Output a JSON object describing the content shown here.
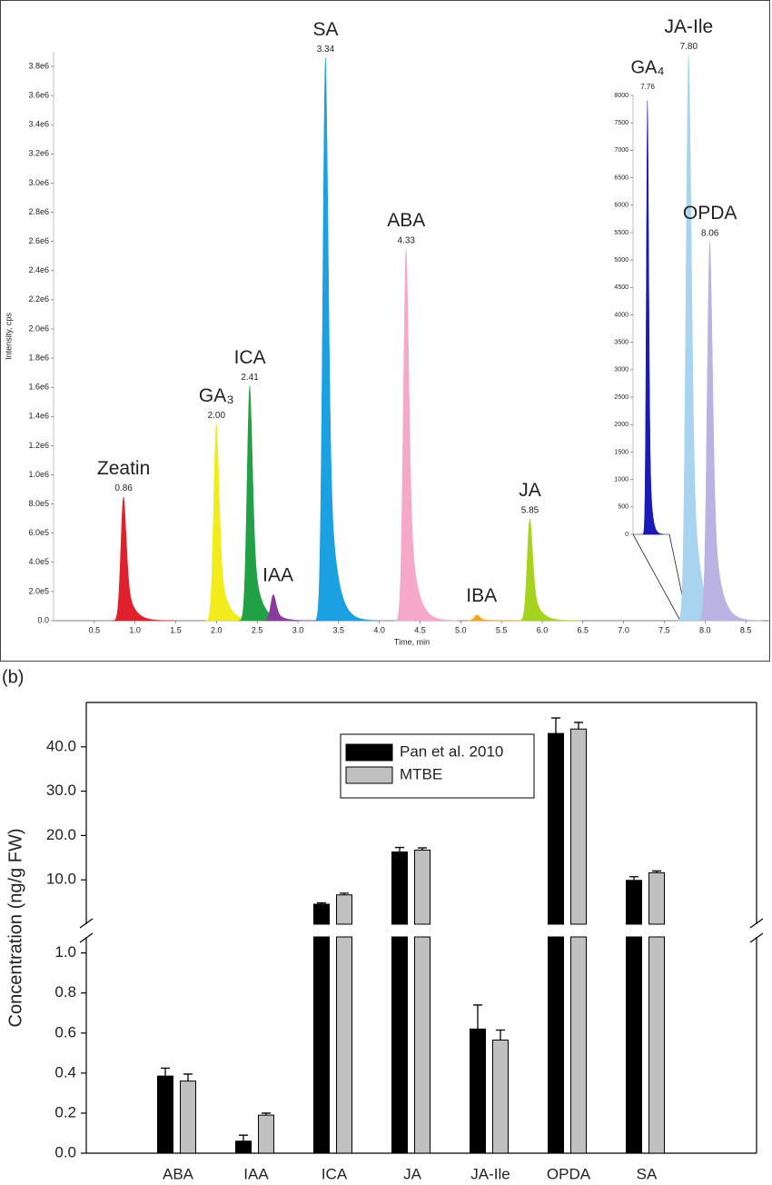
{
  "chart_data": [
    {
      "type": "chromatogram",
      "ylabel": "Intensity, cps",
      "xlabel": "Time, min",
      "xlim": [
        0,
        8.8
      ],
      "ylim": [
        0,
        3900000
      ],
      "xticks": [
        0.5,
        {
          "value": 1,
          "label": "1.0"
        },
        1.5,
        {
          "value": 2,
          "label": "2.0"
        },
        2.5,
        {
          "value": 3,
          "label": "3.0"
        },
        3.5,
        {
          "value": 4,
          "label": "4.0"
        },
        4.5,
        {
          "value": 5,
          "label": "5.0"
        },
        5.5,
        {
          "value": 6,
          "label": "6.0"
        },
        6.5,
        {
          "value": 7,
          "label": "7.0"
        },
        7.5,
        {
          "value": 8,
          "label": "8.0"
        },
        8.5
      ],
      "yticks": [
        {
          "value": 0,
          "label": "0.0"
        },
        {
          "value": 200000,
          "label": "2.0e5"
        },
        {
          "value": 400000,
          "label": "4.0e5"
        },
        {
          "value": 600000,
          "label": "6.0e5"
        },
        {
          "value": 800000,
          "label": "8.0e5"
        },
        {
          "value": 1000000,
          "label": "1.0e6"
        },
        {
          "value": 1200000,
          "label": "1.2e6"
        },
        {
          "value": 1400000,
          "label": "1.4e6"
        },
        {
          "value": 1600000,
          "label": "1.6e6"
        },
        {
          "value": 1800000,
          "label": "1.8e6"
        },
        {
          "value": 2000000,
          "label": "2.0e6"
        },
        {
          "value": 2200000,
          "label": "2.2e6"
        },
        {
          "value": 2400000,
          "label": "2.4e6"
        },
        {
          "value": 2600000,
          "label": "2.6e6"
        },
        {
          "value": 2800000,
          "label": "2.8e6"
        },
        {
          "value": 3000000,
          "label": "3.0e6"
        },
        {
          "value": 3200000,
          "label": "3.2e6"
        },
        {
          "value": 3400000,
          "label": "3.4e6"
        },
        {
          "value": 3600000,
          "label": "3.6e6"
        },
        {
          "value": 3800000,
          "label": "3.8e6"
        }
      ],
      "peaks": [
        {
          "name": "Zeatin",
          "rt": 0.86,
          "rt_label": "0.86",
          "height": 850000,
          "color": "#e0202c"
        },
        {
          "name": "GA₃",
          "rt": 2.0,
          "rt_label": "2.00",
          "height": 1350000,
          "color": "#f2ec1c"
        },
        {
          "name": "ICA",
          "rt": 2.41,
          "rt_label": "2.41",
          "height": 1610000,
          "color": "#22a046"
        },
        {
          "name": "IAA",
          "rt": 2.7,
          "height": 180000,
          "color": "#8a3a9a"
        },
        {
          "name": "SA",
          "rt": 3.34,
          "rt_label": "3.34",
          "height": 3860000,
          "color": "#1ba0e2"
        },
        {
          "name": "ABA",
          "rt": 4.33,
          "rt_label": "4.33",
          "height": 2550000,
          "color": "#f5a8c8"
        },
        {
          "name": "IBA",
          "rt": 5.2,
          "height": 40000,
          "color": "#f0a820"
        },
        {
          "name": "JA",
          "rt": 5.85,
          "rt_label": "5.85",
          "height": 700000,
          "color": "#a6d41e"
        },
        {
          "name": "JA-Ile",
          "rt": 7.8,
          "rt_label": "7.80",
          "height": 3880000,
          "color": "#a8d4f0"
        },
        {
          "name": "OPDA",
          "rt": 8.06,
          "rt_label": "8.06",
          "height": 2600000,
          "color": "#bab2e2"
        }
      ]
    },
    {
      "type": "chromatogram",
      "xlim": [
        7.7,
        7.85
      ],
      "ylim": [
        0,
        8000
      ],
      "yticks": [
        0,
        500,
        1000,
        1500,
        2000,
        2500,
        3000,
        3500,
        4000,
        4500,
        5000,
        5500,
        6000,
        6500,
        7000,
        7500,
        8000
      ],
      "peaks": [
        {
          "name": "GA₄",
          "rt": 7.76,
          "rt_label": "7.76",
          "height": 8000,
          "color": "#1a1ab8"
        }
      ]
    },
    {
      "type": "bar",
      "label": "(b)",
      "ylabel": "Concentration (ng/g FW)",
      "categories": [
        "ABA",
        "IAA",
        "ICA",
        "JA",
        "JA-Ile",
        "OPDA",
        "SA"
      ],
      "ylim_lower": [
        0,
        1.08
      ],
      "ylim_upper": [
        0,
        50
      ],
      "yticks_lower": [
        {
          "value": 0,
          "label": "0.0"
        },
        0.2,
        0.4,
        0.6,
        0.8,
        {
          "value": 1,
          "label": "1.0"
        }
      ],
      "yticks_upper": [
        {
          "value": 10,
          "label": "10.0"
        },
        {
          "value": 20,
          "label": "20.0"
        },
        {
          "value": 30,
          "label": "30.0"
        },
        {
          "value": 40,
          "label": "40.0"
        }
      ],
      "series": [
        {
          "name": "Pan et al. 2010",
          "color": "#000000",
          "values": [
            0.385,
            0.06,
            4.5,
            16.3,
            0.62,
            43,
            9.9
          ],
          "errors": [
            0.04,
            0.03,
            0.3,
            1.0,
            0.12,
            3.5,
            0.8
          ]
        },
        {
          "name": "MTBE",
          "color": "#c0c0c0",
          "values": [
            0.36,
            0.19,
            6.6,
            16.7,
            0.565,
            44,
            11.6
          ],
          "errors": [
            0.035,
            0.01,
            0.4,
            0.5,
            0.05,
            1.5,
            0.4
          ]
        }
      ]
    }
  ]
}
